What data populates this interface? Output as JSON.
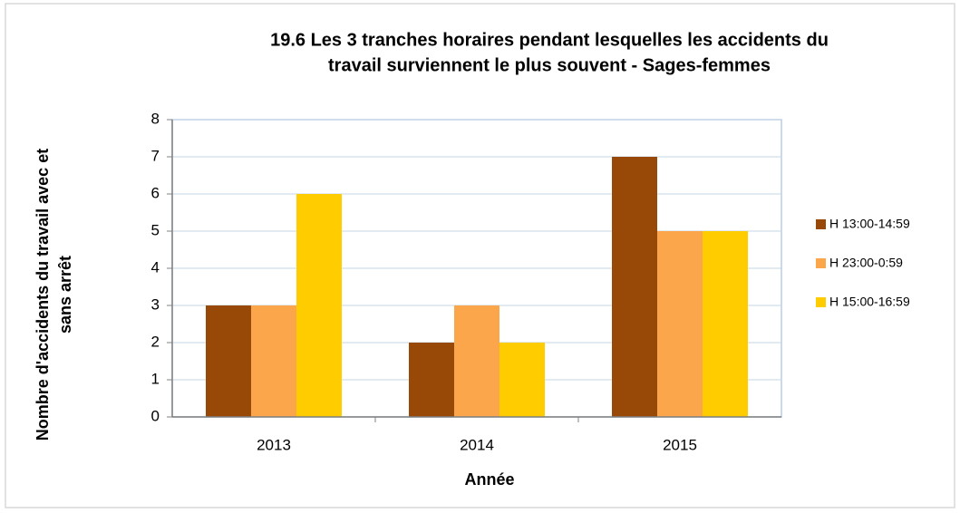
{
  "chart_data": {
    "type": "bar",
    "title": [
      "19.6 Les 3 tranches horaires pendant lesquelles les accidents du",
      "travail surviennent le plus souvent - Sages-femmes"
    ],
    "x_label": "Année",
    "y_label": [
      "Nombre d'accidents du travail avec et",
      "sans arrêt"
    ],
    "categories": [
      "2013",
      "2014",
      "2015"
    ],
    "series": [
      {
        "name": "H 13:00-14:59",
        "color": "#984807",
        "values": [
          3,
          2,
          7
        ]
      },
      {
        "name": "H 23:00-0:59",
        "color": "#fba64a",
        "values": [
          3,
          3,
          5
        ]
      },
      {
        "name": "H 15:00-16:59",
        "color": "#ffcc00",
        "values": [
          6,
          2,
          5
        ]
      }
    ],
    "ylim": [
      0,
      8
    ],
    "yticks": [
      0,
      1,
      2,
      3,
      4,
      5,
      6,
      7,
      8
    ],
    "grid": true,
    "legend": "right"
  }
}
